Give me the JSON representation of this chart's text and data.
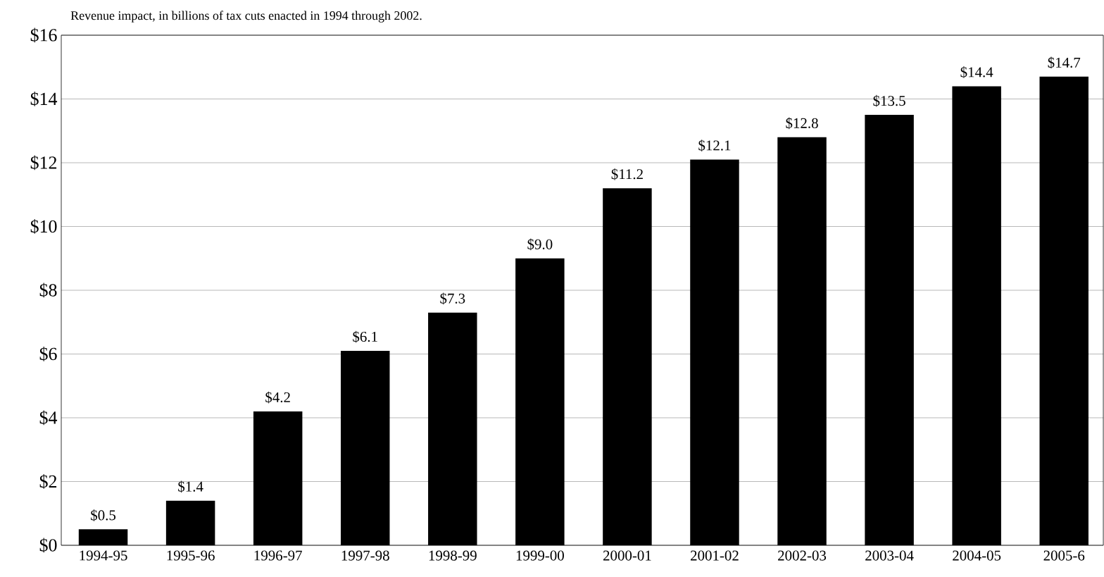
{
  "chart_data": {
    "type": "bar",
    "title": "Revenue impact, in billions of tax cuts enacted in 1994 through 2002.",
    "categories": [
      "1994-95",
      "1995-96",
      "1996-97",
      "1997-98",
      "1998-99",
      "1999-00",
      "2000-01",
      "2001-02",
      "2002-03",
      "2003-04",
      "2004-05",
      "2005-6"
    ],
    "values": [
      0.5,
      1.4,
      4.2,
      6.1,
      7.3,
      9.0,
      11.2,
      12.1,
      12.8,
      13.5,
      14.4,
      14.7
    ],
    "value_labels": [
      "$0.5",
      "$1.4",
      "$4.2",
      "$6.1",
      "$7.3",
      "$9.0",
      "$11.2",
      "$12.1",
      "$12.8",
      "$13.5",
      "$14.4",
      "$14.7"
    ],
    "color": "#000000",
    "ylim": [
      0,
      16
    ],
    "yticks": [
      {
        "value": 0,
        "label": "$0"
      },
      {
        "value": 2,
        "label": "$2"
      },
      {
        "value": 4,
        "label": "$4"
      },
      {
        "value": 6,
        "label": "$6"
      },
      {
        "value": 8,
        "label": "$8"
      },
      {
        "value": 10,
        "label": "$10"
      },
      {
        "value": 12,
        "label": "$12"
      },
      {
        "value": 14,
        "label": "$14"
      },
      {
        "value": 16,
        "label": "$16"
      }
    ],
    "grid": "y"
  }
}
